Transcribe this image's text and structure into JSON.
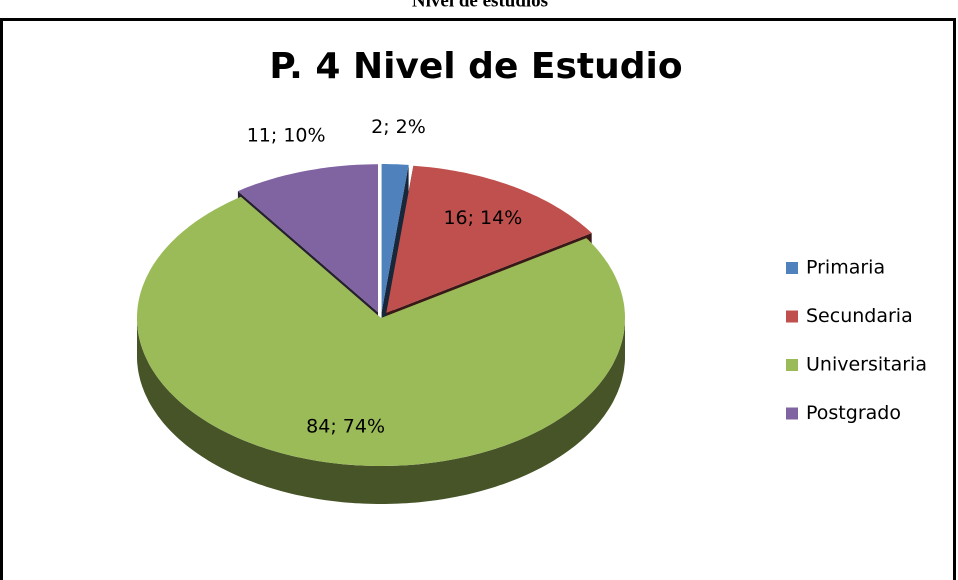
{
  "caption": "Nivel de estudios",
  "chart_data": {
    "type": "pie3d",
    "title": "P. 4 Nivel de Estudio",
    "categories": [
      "Primaria",
      "Secundaria",
      "Universitaria",
      "Postgrado"
    ],
    "values": [
      2,
      16,
      84,
      11
    ],
    "value_labels": [
      "2; 2%",
      "16; 14%",
      "84; 74%",
      "11; 10%"
    ],
    "colors": [
      "#4f81bd",
      "#c0504d",
      "#9bbb59",
      "#8064a2"
    ],
    "legend": "right"
  }
}
